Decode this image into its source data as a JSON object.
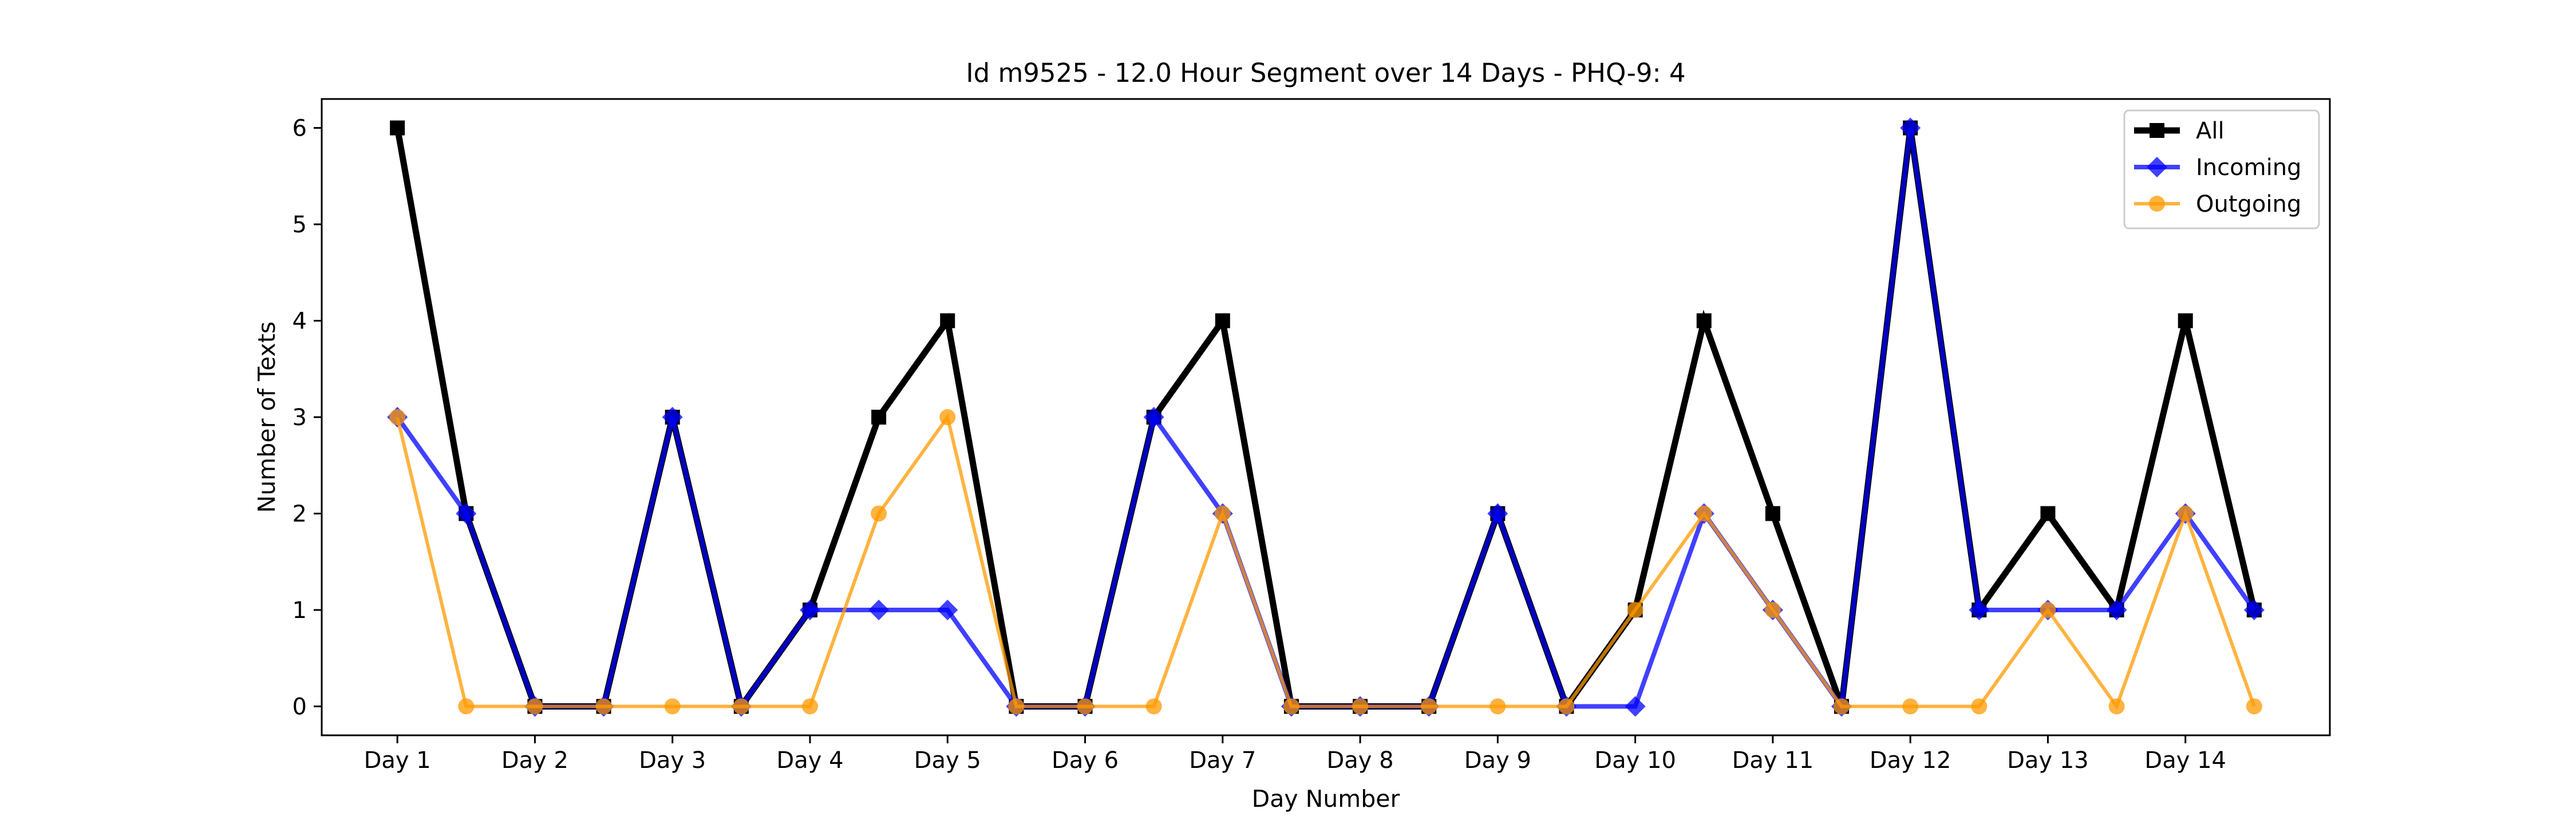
{
  "chart_data": {
    "type": "line",
    "title": "Id m9525 - 12.0 Hour Segment over 14 Days - PHQ-9: 4",
    "xlabel": "Day Number",
    "ylabel": "Number of Texts",
    "x": [
      1,
      1.5,
      2,
      2.5,
      3,
      3.5,
      4,
      4.5,
      5,
      5.5,
      6,
      6.5,
      7,
      7.5,
      8,
      8.5,
      9,
      9.5,
      10,
      10.5,
      11,
      11.5,
      12,
      12.5,
      13,
      13.5,
      14,
      14.5
    ],
    "xlim": [
      0.45,
      15.05
    ],
    "ylim": [
      -0.3,
      6.3
    ],
    "xticks": [
      1,
      2,
      3,
      4,
      5,
      6,
      7,
      8,
      9,
      10,
      11,
      12,
      13,
      14
    ],
    "xtick_labels": [
      "Day 1",
      "Day 2",
      "Day 3",
      "Day 4",
      "Day 5",
      "Day 6",
      "Day 7",
      "Day 8",
      "Day 9",
      "Day 10",
      "Day 11",
      "Day 12",
      "Day 13",
      "Day 14"
    ],
    "yticks": [
      0,
      1,
      2,
      3,
      4,
      5,
      6
    ],
    "ytick_labels": [
      "0",
      "1",
      "2",
      "3",
      "4",
      "5",
      "6"
    ],
    "grid": false,
    "legend_position": "top-right",
    "series": [
      {
        "name": "All",
        "color": "#000000",
        "marker": "square",
        "values": [
          6,
          2,
          0,
          0,
          3,
          0,
          1,
          3,
          4,
          0,
          0,
          3,
          4,
          0,
          0,
          0,
          2,
          0,
          1,
          4,
          2,
          0,
          6,
          1,
          2,
          1,
          4,
          1
        ]
      },
      {
        "name": "Incoming",
        "color": "#0000ff",
        "marker": "diamond",
        "values": [
          3,
          2,
          0,
          0,
          3,
          0,
          1,
          1,
          1,
          0,
          0,
          3,
          2,
          0,
          0,
          0,
          2,
          0,
          0,
          2,
          1,
          0,
          6,
          1,
          1,
          1,
          2,
          1
        ]
      },
      {
        "name": "Outgoing",
        "color": "#ff9900",
        "marker": "circle",
        "values": [
          3,
          0,
          0,
          0,
          0,
          0,
          0,
          2,
          3,
          0,
          0,
          0,
          2,
          0,
          0,
          0,
          0,
          0,
          1,
          2,
          1,
          0,
          0,
          0,
          1,
          0,
          2,
          0
        ]
      }
    ]
  }
}
